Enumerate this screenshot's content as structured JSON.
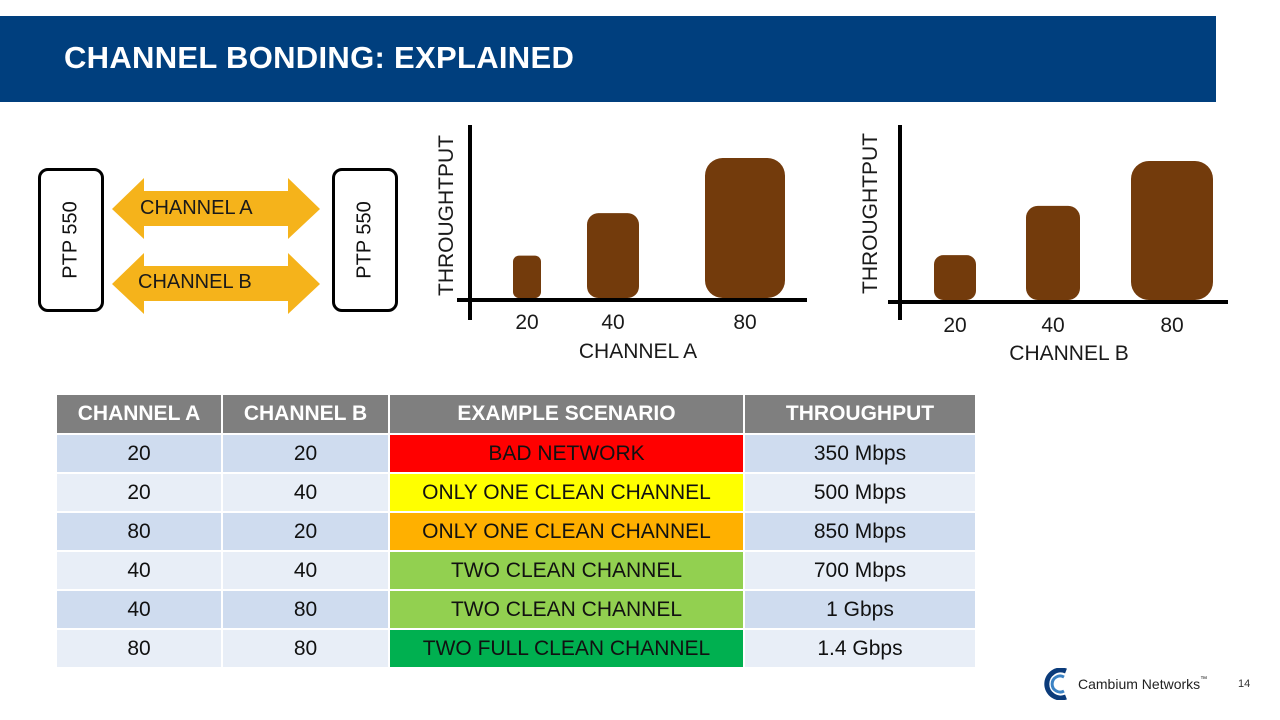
{
  "slide": {
    "title": "CHANNEL BONDING: EXPLAINED",
    "page_number": "14"
  },
  "diagram": {
    "device_left": "PTP 550",
    "device_right": "PTP 550",
    "arrow_a_label": "CHANNEL A",
    "arrow_b_label": "CHANNEL B",
    "arrow_color": "#f5b31b"
  },
  "chart_data": [
    {
      "type": "bar",
      "ylabel": "THROUGHTPUT",
      "xlabel": "CHANNEL A",
      "categories": [
        "20",
        "40",
        "80"
      ],
      "values": [
        1,
        2,
        3.3
      ],
      "color": "#733b0c"
    },
    {
      "type": "bar",
      "ylabel": "THROUGHTPUT",
      "xlabel": "CHANNEL B",
      "categories": [
        "20",
        "40",
        "80"
      ],
      "values": [
        1,
        2.1,
        3.1
      ],
      "color": "#733b0c"
    }
  ],
  "table": {
    "headers": [
      "CHANNEL A",
      "CHANNEL B",
      "EXAMPLE SCENARIO",
      "THROUGHPUT"
    ],
    "rows": [
      {
        "a": "20",
        "b": "20",
        "scenario": "BAD NETWORK",
        "throughput": "350 Mbps",
        "color": "#ff0000"
      },
      {
        "a": "20",
        "b": "40",
        "scenario": "ONLY ONE CLEAN CHANNEL",
        "throughput": "500 Mbps",
        "color": "#ffff00"
      },
      {
        "a": "80",
        "b": "20",
        "scenario": "ONLY ONE CLEAN CHANNEL",
        "throughput": "850 Mbps",
        "color": "#ffb000"
      },
      {
        "a": "40",
        "b": "40",
        "scenario": "TWO CLEAN CHANNEL",
        "throughput": "700 Mbps",
        "color": "#92d050"
      },
      {
        "a": "40",
        "b": "80",
        "scenario": "TWO CLEAN CHANNEL",
        "throughput": "1 Gbps",
        "color": "#92d050"
      },
      {
        "a": "80",
        "b": "80",
        "scenario": "TWO FULL CLEAN CHANNEL",
        "throughput": "1.4 Gbps",
        "color": "#00b050"
      }
    ]
  },
  "logo": {
    "text": "Cambium Networks",
    "tm": "™",
    "icon": "cambium-logo-icon"
  }
}
